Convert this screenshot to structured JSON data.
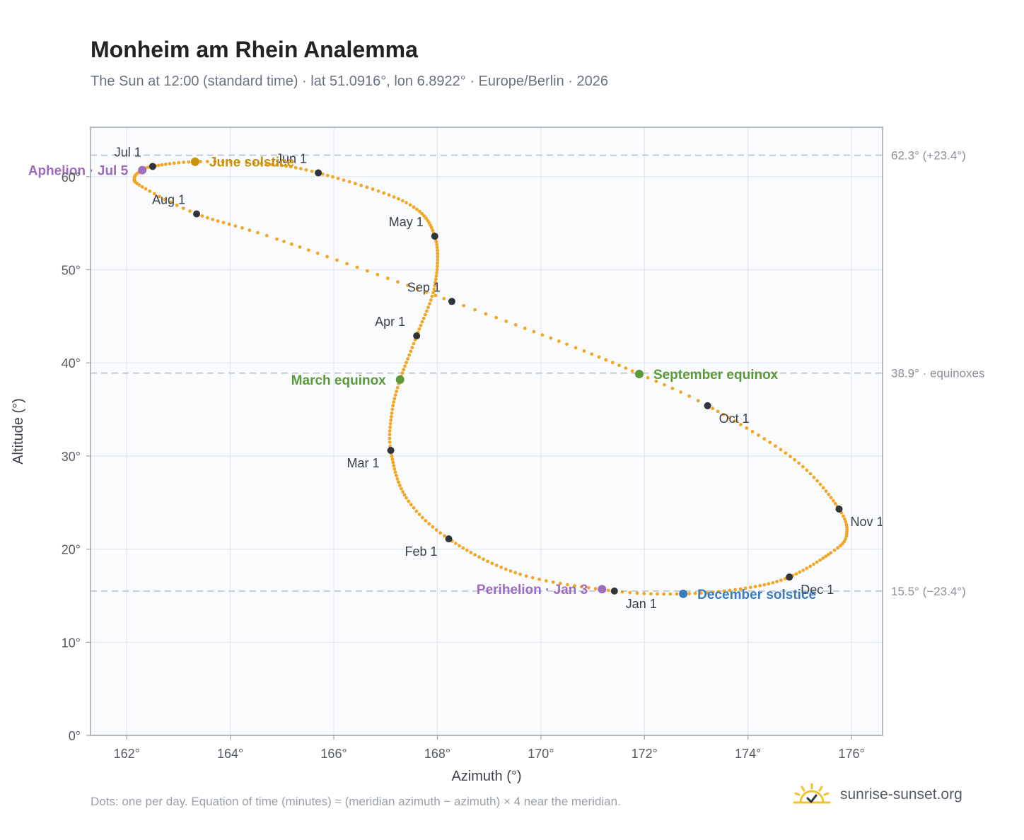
{
  "title": "Monheim am Rhein Analemma",
  "subtitle": "The Sun at 12:00 (standard time) · lat 51.0916°, lon 6.8922° · Europe/Berlin · 2026",
  "footnote": "Dots: one per day. Equation of time (minutes) ≈ (meridian azimuth − azimuth) × 4 near the meridian.",
  "brand": {
    "name": "sunrise-sunset.org",
    "icon": "sun-check-icon"
  },
  "colors": {
    "path": "#f2a623",
    "month_marker": "#2f343b",
    "solstice_june": "#c9900c",
    "solstice_december": "#3a7abd",
    "equinox": "#5a9a3a",
    "apsis": "#9b6cbf",
    "reference_line": "#b8c0cc",
    "plot_bg": "#f9fbfd",
    "grid": "#e3e7ec"
  },
  "chart_data": {
    "type": "scatter",
    "xlabel": "Azimuth (°)",
    "ylabel": "Altitude (°)",
    "xlim": [
      161.3,
      176.6
    ],
    "ylim": [
      0,
      65.3
    ],
    "xticks": [
      162,
      164,
      166,
      168,
      170,
      172,
      174,
      176
    ],
    "xtick_labels": [
      "162°",
      "164°",
      "166°",
      "168°",
      "170°",
      "172°",
      "174°",
      "176°"
    ],
    "yticks": [
      0,
      10,
      20,
      30,
      40,
      50,
      60
    ],
    "ytick_labels": [
      "0°",
      "10°",
      "20°",
      "30°",
      "40°",
      "50°",
      "60°"
    ],
    "grid": true,
    "reference_lines": [
      {
        "altitude": 62.3,
        "label": "62.3° (+23.4°)"
      },
      {
        "altitude": 38.9,
        "label": "38.9° · equinoxes"
      },
      {
        "altitude": 15.5,
        "label": "15.5° (−23.4°)"
      }
    ],
    "path_anchors": [
      {
        "day": 1,
        "az": 171.42,
        "alt": 15.5
      },
      {
        "day": 15,
        "az": 169.6,
        "alt": 17.3
      },
      {
        "day": 32,
        "az": 168.22,
        "alt": 21.1
      },
      {
        "day": 45,
        "az": 167.4,
        "alt": 25.5
      },
      {
        "day": 60,
        "az": 167.1,
        "alt": 30.6
      },
      {
        "day": 70,
        "az": 167.12,
        "alt": 34.6
      },
      {
        "day": 79,
        "az": 167.28,
        "alt": 38.2
      },
      {
        "day": 91,
        "az": 167.6,
        "alt": 42.9
      },
      {
        "day": 105,
        "az": 167.95,
        "alt": 48.3
      },
      {
        "day": 121,
        "az": 167.95,
        "alt": 53.6
      },
      {
        "day": 135,
        "az": 167.4,
        "alt": 57.2
      },
      {
        "day": 152,
        "az": 165.7,
        "alt": 60.4
      },
      {
        "day": 163,
        "az": 164.6,
        "alt": 61.4
      },
      {
        "day": 172,
        "az": 163.3,
        "alt": 61.6
      },
      {
        "day": 182,
        "az": 162.5,
        "alt": 61.1
      },
      {
        "day": 186,
        "az": 162.3,
        "alt": 60.7
      },
      {
        "day": 194,
        "az": 162.15,
        "alt": 59.9
      },
      {
        "day": 203,
        "az": 162.3,
        "alt": 58.9
      },
      {
        "day": 213,
        "az": 163.35,
        "alt": 56.0
      },
      {
        "day": 225,
        "az": 164.9,
        "alt": 53.3
      },
      {
        "day": 244,
        "az": 168.28,
        "alt": 46.6
      },
      {
        "day": 256,
        "az": 170.5,
        "alt": 42.0
      },
      {
        "day": 266,
        "az": 171.9,
        "alt": 38.8
      },
      {
        "day": 274,
        "az": 173.22,
        "alt": 35.4
      },
      {
        "day": 290,
        "az": 174.9,
        "alt": 29.6
      },
      {
        "day": 305,
        "az": 175.76,
        "alt": 24.3
      },
      {
        "day": 315,
        "az": 175.9,
        "alt": 21.4
      },
      {
        "day": 322,
        "az": 175.6,
        "alt": 19.6
      },
      {
        "day": 335,
        "az": 174.8,
        "alt": 17.0
      },
      {
        "day": 345,
        "az": 173.95,
        "alt": 15.8
      },
      {
        "day": 356,
        "az": 172.75,
        "alt": 15.2
      },
      {
        "day": 366,
        "az": 171.42,
        "alt": 15.5
      }
    ],
    "month_markers": [
      {
        "label": "Jan 1",
        "az": 171.42,
        "alt": 15.5,
        "anchor": "below-right"
      },
      {
        "label": "Feb 1",
        "az": 168.22,
        "alt": 21.1,
        "anchor": "below-left"
      },
      {
        "label": "Mar 1",
        "az": 167.1,
        "alt": 30.6,
        "anchor": "below-left"
      },
      {
        "label": "Apr 1",
        "az": 167.6,
        "alt": 42.9,
        "anchor": "above-left"
      },
      {
        "label": "May 1",
        "az": 167.95,
        "alt": 53.6,
        "anchor": "above-left"
      },
      {
        "label": "Jun 1",
        "az": 165.7,
        "alt": 60.4,
        "anchor": "above-left"
      },
      {
        "label": "Jul 1",
        "az": 162.5,
        "alt": 61.1,
        "anchor": "above-left"
      },
      {
        "label": "Aug 1",
        "az": 163.35,
        "alt": 56.0,
        "anchor": "above-left"
      },
      {
        "label": "Sep 1",
        "az": 168.28,
        "alt": 46.6,
        "anchor": "above-left"
      },
      {
        "label": "Oct 1",
        "az": 173.22,
        "alt": 35.4,
        "anchor": "below-right"
      },
      {
        "label": "Nov 1",
        "az": 175.76,
        "alt": 24.3,
        "anchor": "below-right"
      },
      {
        "label": "Dec 1",
        "az": 174.8,
        "alt": 17.0,
        "anchor": "below-right"
      }
    ],
    "events": [
      {
        "label": "June solstice",
        "az": 163.32,
        "alt": 61.6,
        "color_key": "solstice_june",
        "anchor": "right"
      },
      {
        "label": "December solstice",
        "az": 172.75,
        "alt": 15.2,
        "color_key": "solstice_december",
        "anchor": "right"
      },
      {
        "label": "March equinox",
        "az": 167.28,
        "alt": 38.2,
        "color_key": "equinox",
        "anchor": "left"
      },
      {
        "label": "September equinox",
        "az": 171.9,
        "alt": 38.8,
        "color_key": "equinox",
        "anchor": "right"
      },
      {
        "label": "Aphelion · Jul 5",
        "az": 162.3,
        "alt": 60.7,
        "color_key": "apsis",
        "anchor": "left"
      },
      {
        "label": "Perihelion · Jan 3",
        "az": 171.18,
        "alt": 15.7,
        "color_key": "apsis",
        "anchor": "left"
      }
    ]
  }
}
